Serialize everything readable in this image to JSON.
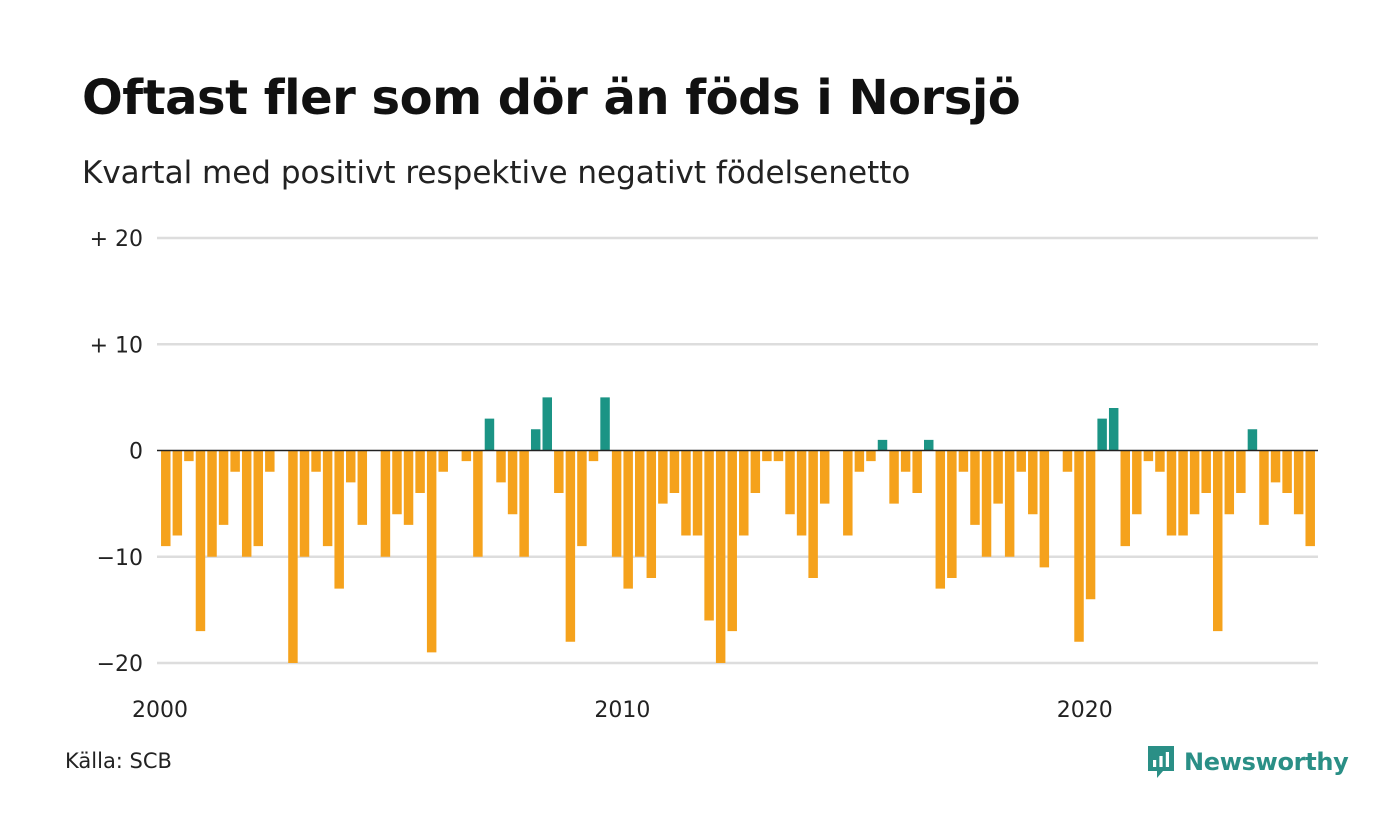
{
  "title": "Oftast fler som dör än föds i Norsjö",
  "subtitle": "Kvartal med positivt respektive negativt födelsenetto",
  "source": "Källa: SCB",
  "brand": {
    "name": "Newsworthy",
    "icon": "newsworthy-logo-icon"
  },
  "colors": {
    "positive": "#1b9485",
    "negative": "#f5a21c",
    "grid": "#dddddd",
    "zero_line": "#222222"
  },
  "chart_data": {
    "type": "bar",
    "title": "Oftast fler som dör än föds i Norsjö",
    "subtitle": "Kvartal med positivt respektive negativt födelsenetto",
    "xlabel": "",
    "ylabel": "",
    "ylim": [
      -20,
      20
    ],
    "y_ticks": [
      {
        "value": 20,
        "label": "+ 20"
      },
      {
        "value": 10,
        "label": "+ 10"
      },
      {
        "value": 0,
        "label": "0"
      },
      {
        "value": -10,
        "label": "−10"
      },
      {
        "value": -20,
        "label": "−20"
      }
    ],
    "x_ticks": [
      {
        "value": 2000,
        "label": "2000"
      },
      {
        "value": 2010,
        "label": "2010"
      },
      {
        "value": 2020,
        "label": "2020"
      }
    ],
    "x_start": 2000,
    "x_end": 2025,
    "frequency": "quarterly",
    "grid": true,
    "legend": "none",
    "values": [
      -9,
      -8,
      -1,
      -17,
      -10,
      -7,
      -2,
      -10,
      -9,
      -2,
      0,
      -20,
      -10,
      -2,
      -9,
      -13,
      -3,
      -7,
      0,
      -10,
      -6,
      -7,
      -4,
      -19,
      -2,
      0,
      -1,
      -10,
      3,
      -3,
      -6,
      -10,
      2,
      5,
      -4,
      -18,
      -9,
      -1,
      5,
      -10,
      -13,
      -10,
      -12,
      -5,
      -4,
      -8,
      -8,
      -16,
      -20,
      -17,
      -8,
      -4,
      -1,
      -1,
      -6,
      -8,
      -12,
      -5,
      0,
      -8,
      -2,
      -1,
      1,
      -5,
      -2,
      -4,
      1,
      -13,
      -12,
      -2,
      -7,
      -10,
      -5,
      -10,
      -2,
      -6,
      -11,
      0,
      -2,
      -18,
      -14,
      3,
      4,
      -9,
      -6,
      -1,
      -2,
      -8,
      -8,
      -6,
      -4,
      -17,
      -6,
      -4,
      2,
      -7,
      -3,
      -4,
      -6,
      -9
    ]
  }
}
